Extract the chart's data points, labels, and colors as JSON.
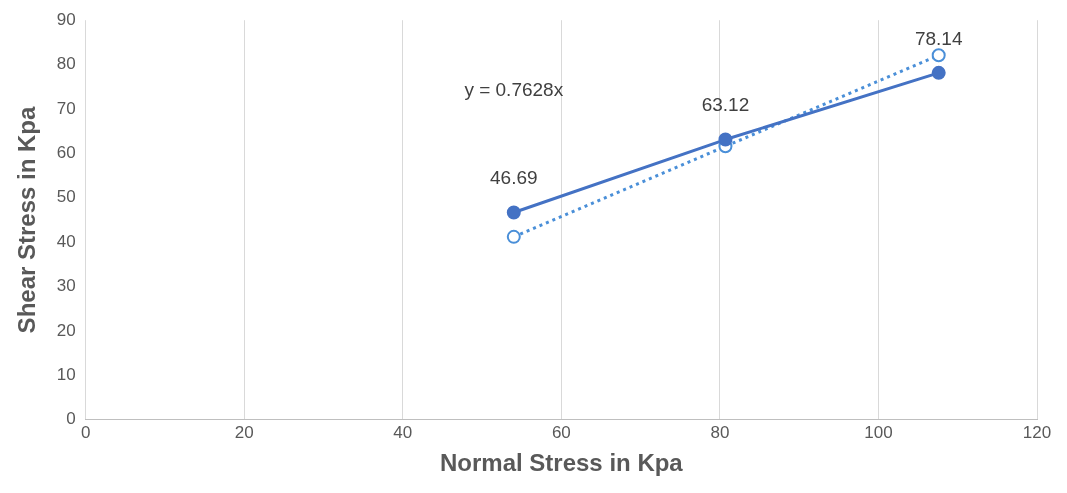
{
  "chart_data": {
    "type": "line",
    "xlabel": "Normal Stress in Kpa",
    "ylabel": "Shear Stress in Kpa",
    "x": [
      54,
      80.7,
      107.6
    ],
    "series": [
      {
        "color": "#4472c4",
        "values": [
          46.69,
          63.12,
          78.14
        ],
        "value_labels": [
          "46.69",
          "63.12",
          "78.14"
        ],
        "line_style": "solid",
        "marker": "circle"
      },
      {
        "color": "#4a8fd8",
        "values": [
          41.2,
          61.6,
          82.1
        ],
        "line_style": "dotted",
        "marker": "circle"
      }
    ],
    "annotations": [
      "y = 0.7628x"
    ],
    "xlim": [
      0,
      120
    ],
    "xticks": [
      0,
      20,
      40,
      60,
      80,
      100,
      120
    ],
    "ylim": [
      0,
      90
    ],
    "yticks": [
      0,
      10,
      20,
      30,
      40,
      50,
      60,
      70,
      80,
      90
    ],
    "grid": "x",
    "legend": false
  }
}
